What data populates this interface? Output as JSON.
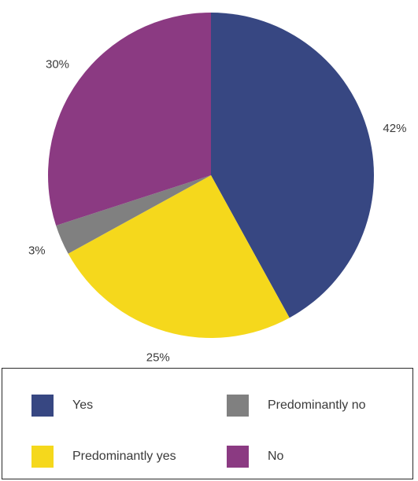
{
  "chart_data": {
    "type": "pie",
    "slices": [
      {
        "label": "Yes",
        "value": 42,
        "display": "42%",
        "color": "#374782"
      },
      {
        "label": "Predominantly yes",
        "value": 25,
        "display": "25%",
        "color": "#f5d81c"
      },
      {
        "label": "Predominantly no",
        "value": 3,
        "display": "3%",
        "color": "#808080"
      },
      {
        "label": "No",
        "value": 30,
        "display": "30%",
        "color": "#8b3a82"
      }
    ],
    "legend_position": "bottom"
  },
  "legend": {
    "items": [
      {
        "label": "Yes",
        "color": "#374782"
      },
      {
        "label": "Predominantly no",
        "color": "#808080"
      },
      {
        "label": "Predominantly yes",
        "color": "#f5d81c"
      },
      {
        "label": "No",
        "color": "#8b3a82"
      }
    ]
  }
}
